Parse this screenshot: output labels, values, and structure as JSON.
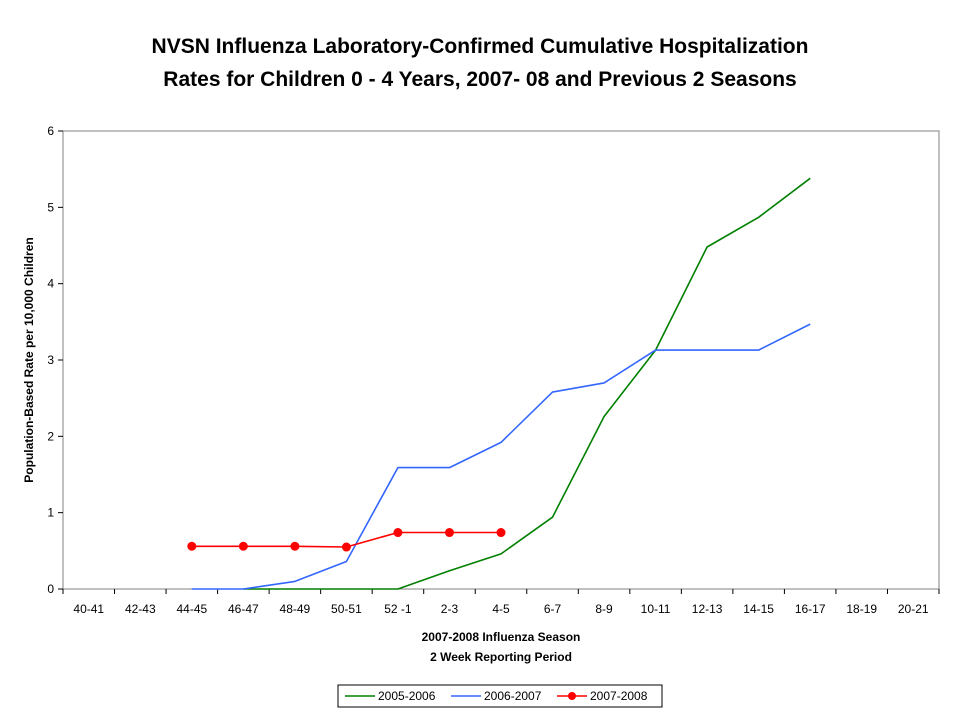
{
  "chart_data": {
    "type": "line",
    "title": "NVSN Influenza Laboratory-Confirmed Cumulative Hospitalization",
    "subtitle": "Rates for Children 0 - 4 Years, 2007- 08 and Previous 2 Seasons",
    "xlabel": "2007-2008 Influenza Season",
    "xlabel2": "2 Week Reporting Period",
    "ylabel": "Population-Based Rate per 10,000 Children",
    "ylim": [
      0,
      6
    ],
    "yticks": [
      "0",
      "1",
      "2",
      "3",
      "4",
      "5",
      "6"
    ],
    "categories": [
      "40-41",
      "42-43",
      "44-45",
      "46-47",
      "48-49",
      "50-51",
      "52 -1",
      "2-3",
      "4-5",
      "6-7",
      "8-9",
      "10-11",
      "12-13",
      "14-15",
      "16-17",
      "18-19",
      "20-21"
    ],
    "grid": false,
    "legend_position": "bottom",
    "series": [
      {
        "name": "2005-2006",
        "color": "#008000",
        "markers": false,
        "values": [
          null,
          null,
          null,
          0,
          0,
          0,
          0,
          0.24,
          0.46,
          0.94,
          2.26,
          3.13,
          4.48,
          4.87,
          5.38,
          null,
          null
        ]
      },
      {
        "name": "2006-2007",
        "color": "#3366ff",
        "markers": false,
        "values": [
          null,
          null,
          0,
          0,
          0.1,
          0.36,
          1.59,
          1.59,
          1.92,
          2.58,
          2.7,
          3.13,
          3.13,
          3.13,
          3.47,
          null,
          null
        ]
      },
      {
        "name": "2007-2008",
        "color": "#ff0000",
        "markers": true,
        "values": [
          null,
          null,
          0.56,
          0.56,
          0.56,
          0.55,
          0.74,
          0.74,
          0.74,
          null,
          null,
          null,
          null,
          null,
          null,
          null,
          null
        ]
      }
    ]
  }
}
